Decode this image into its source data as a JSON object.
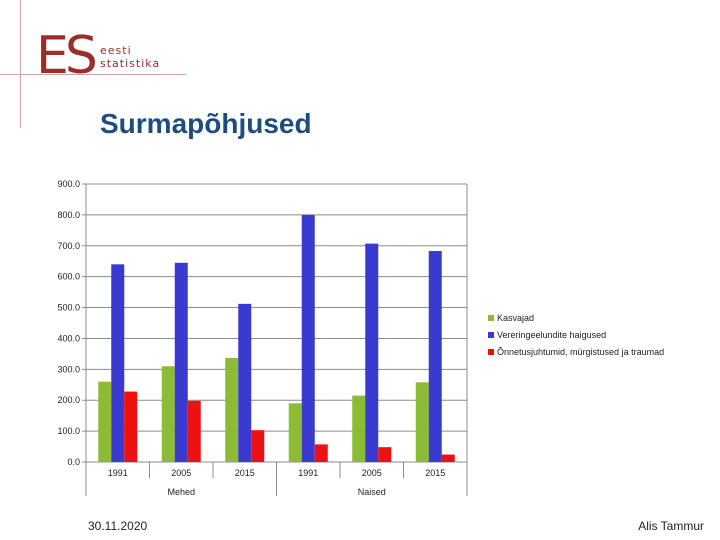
{
  "logo": {
    "mark": "ES",
    "line1": "eesti",
    "line2": "statistika"
  },
  "title": "Surmapõhjused",
  "footer": {
    "date": "30.11.2020",
    "author": "Alis Tammur"
  },
  "colors": {
    "Kasvajad": "#8dbb36",
    "Vereringeelundite haigused": "#3a3ad1",
    "Õnnetusjuhtumid, mürgistused ja traumad": "#ee1111"
  },
  "chart_data": {
    "type": "bar",
    "groups": [
      "Mehed",
      "Naised"
    ],
    "categories": [
      "1991",
      "2005",
      "2015",
      "1991",
      "2005",
      "2015"
    ],
    "ylim": [
      0,
      900
    ],
    "yticks": [
      "0.0",
      "100.0",
      "200.0",
      "300.0",
      "400.0",
      "500.0",
      "600.0",
      "700.0",
      "800.0",
      "900.0"
    ],
    "legend_position": "right",
    "series": [
      {
        "name": "Kasvajad",
        "values": [
          260,
          310,
          337,
          190,
          215,
          258
        ]
      },
      {
        "name": "Vereringeelundite haigused",
        "values": [
          640,
          645,
          512,
          800,
          707,
          683
        ]
      },
      {
        "name": "Õnnetusjuhtumid, mürgistused ja traumad",
        "values": [
          228,
          198,
          103,
          57,
          48,
          24
        ]
      }
    ]
  }
}
